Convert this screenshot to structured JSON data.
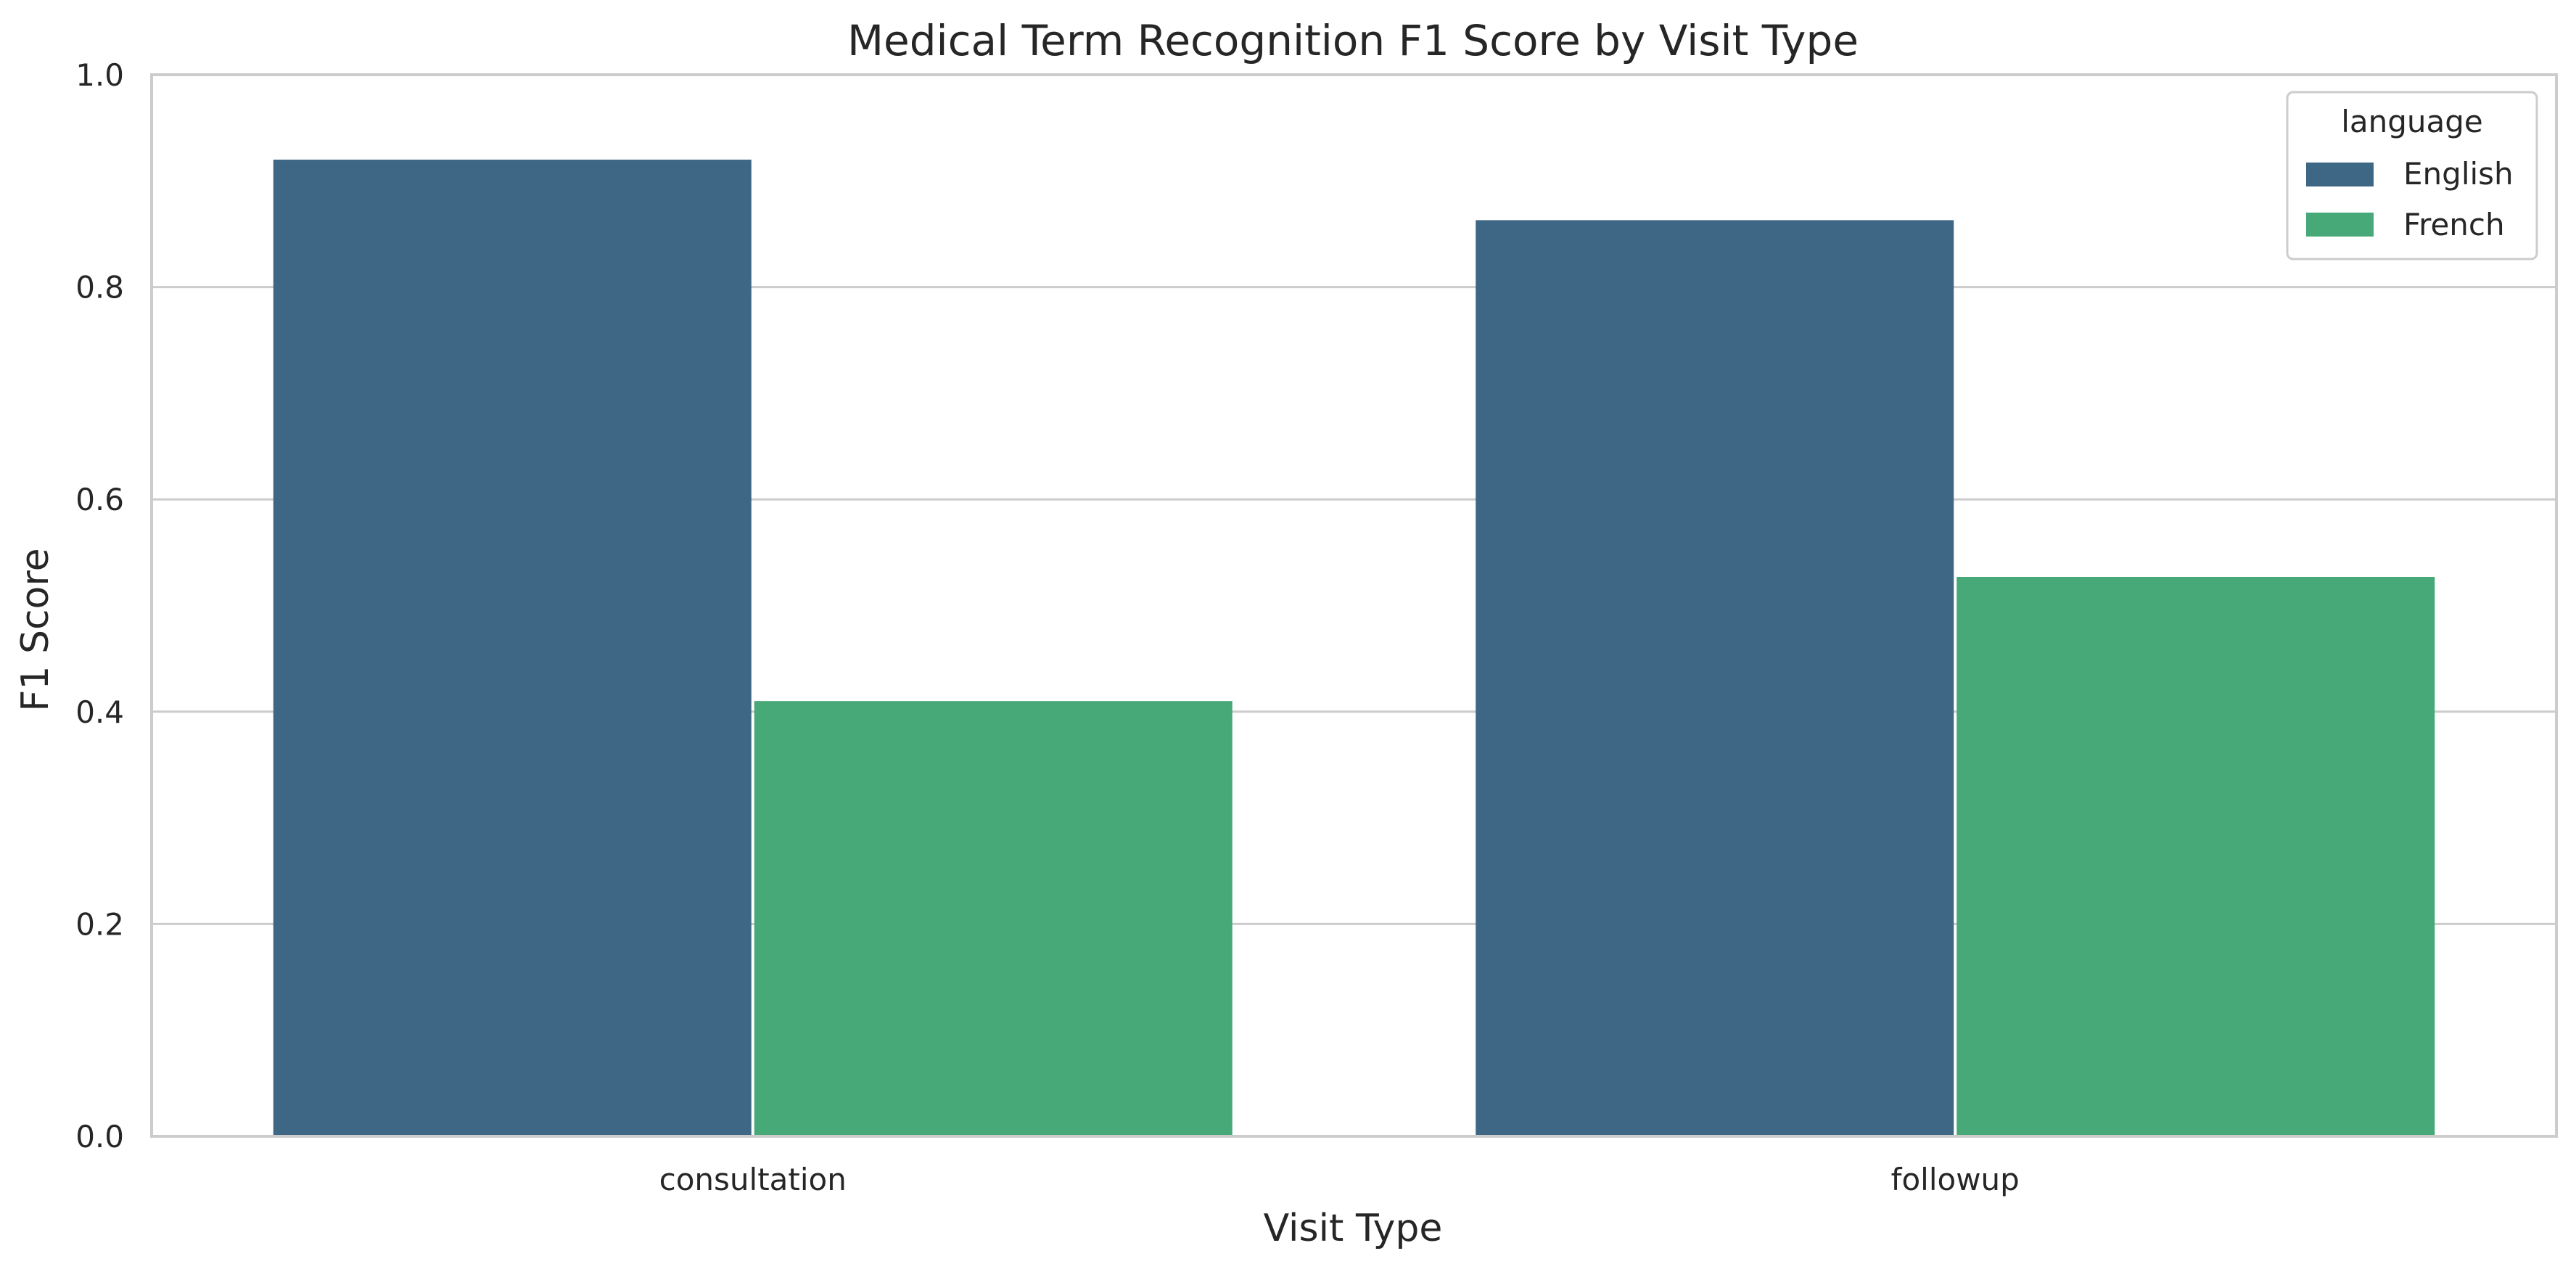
{
  "chart_data": {
    "type": "bar",
    "title": "Medical Term Recognition F1 Score by Visit Type",
    "xlabel": "Visit Type",
    "ylabel": "F1 Score",
    "categories": [
      "consultation",
      "followup"
    ],
    "series": [
      {
        "name": "English",
        "color": "#3e6685",
        "values": [
          0.92,
          0.863
        ]
      },
      {
        "name": "French",
        "color": "#47a878",
        "values": [
          0.41,
          0.527
        ]
      }
    ],
    "ylim": [
      0,
      1.0
    ],
    "yticks": [
      0.0,
      0.2,
      0.4,
      0.6,
      0.8,
      1.0
    ],
    "ytick_labels": [
      "0.0",
      "0.2",
      "0.4",
      "0.6",
      "0.8",
      "1.0"
    ],
    "grid": "horizontal",
    "legend": {
      "title": "language",
      "placement": "top-right"
    }
  }
}
